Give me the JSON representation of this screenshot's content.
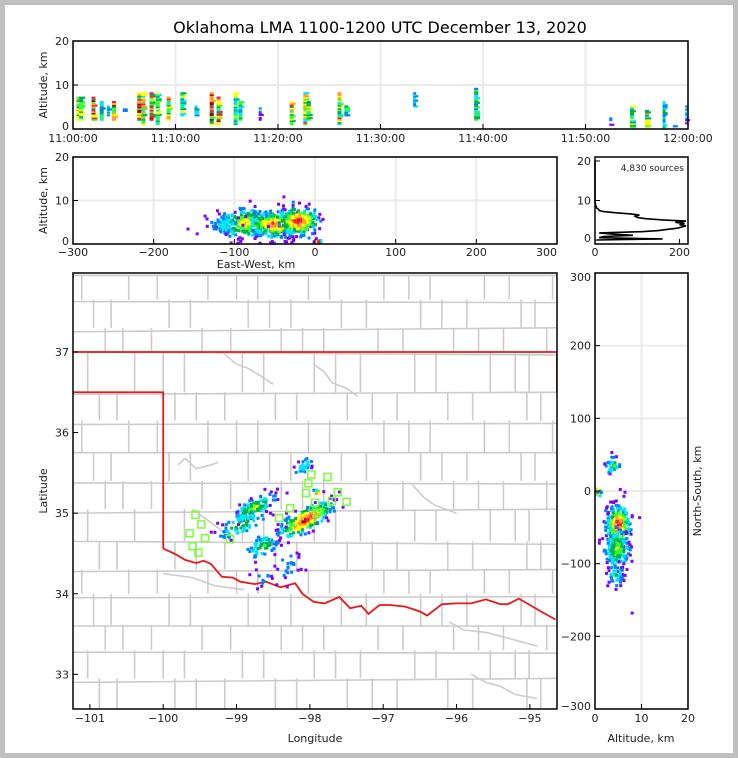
{
  "title": "Oklahoma LMA 1100-1200 UTC December 13, 2020",
  "colors": {
    "frame": "#c0c0c0",
    "state_border": "#e8191a",
    "county_border": "#cccccc",
    "station": "#7cfc3c",
    "grid": "#ebebeb",
    "density_ramp": [
      "#7f00ff",
      "#0080ff",
      "#00e5ff",
      "#00b050",
      "#33ff33",
      "#ffff00",
      "#ff9f2a",
      "#ff1a4a",
      "#b40000",
      "#000000",
      "#bdbdbd"
    ]
  },
  "chart_data": [
    {
      "id": "time_altitude",
      "type": "heatmap",
      "title": "",
      "xlabel": "",
      "ylabel": "Altitude, km",
      "xlim": [
        "11:00:00",
        "12:00:00"
      ],
      "xlim_minutes": [
        0,
        60
      ],
      "ylim": [
        0,
        20
      ],
      "xticks": [
        "11:00:00",
        "11:10:00",
        "11:20:00",
        "11:30:00",
        "11:40:00",
        "11:50:00",
        "12:00:00"
      ],
      "yticks": [
        "0",
        "10",
        "20"
      ],
      "grid": true,
      "columns": [
        {
          "t": 0.8,
          "zmin": 2,
          "zmax": 7,
          "density": 6
        },
        {
          "t": 1.2,
          "zmin": 2,
          "zmax": 7,
          "density": 5
        },
        {
          "t": 3.0,
          "zmin": 2,
          "zmax": 7,
          "density": 8
        },
        {
          "t": 4.2,
          "zmin": 2,
          "zmax": 6,
          "density": 4
        },
        {
          "t": 5.2,
          "zmin": 3,
          "zmax": 5,
          "density": 3
        },
        {
          "t": 6.0,
          "zmin": 2,
          "zmax": 6,
          "density": 7
        },
        {
          "t": 7.5,
          "zmin": 3,
          "zmax": 5,
          "density": 2
        },
        {
          "t": 9.7,
          "zmin": 2,
          "zmax": 8,
          "density": 8
        },
        {
          "t": 10.3,
          "zmin": 1,
          "zmax": 8,
          "density": 6
        },
        {
          "t": 11.5,
          "zmin": 2,
          "zmax": 8,
          "density": 7
        },
        {
          "t": 12.4,
          "zmin": 1,
          "zmax": 8,
          "density": 5
        },
        {
          "t": 14.0,
          "zmin": 2,
          "zmax": 7,
          "density": 6
        },
        {
          "t": 16.0,
          "zmin": 3,
          "zmax": 8,
          "density": 5
        },
        {
          "t": 18.0,
          "zmin": 3,
          "zmax": 5,
          "density": 3
        },
        {
          "t": 20.3,
          "zmin": 1,
          "zmax": 8,
          "density": 8
        },
        {
          "t": 21.3,
          "zmin": 1,
          "zmax": 7,
          "density": 7
        },
        {
          "t": 23.8,
          "zmin": 1,
          "zmax": 8,
          "density": 5
        },
        {
          "t": 24.5,
          "zmin": 2,
          "zmax": 6,
          "density": 4
        },
        {
          "t": 27.4,
          "zmin": 2,
          "zmax": 6,
          "density": 1
        },
        {
          "t": 32.0,
          "zmin": 1,
          "zmax": 6,
          "density": 6
        },
        {
          "t": 34.0,
          "zmin": 1,
          "zmax": 8,
          "density": 6
        },
        {
          "t": 34.5,
          "zmin": 2,
          "zmax": 6,
          "density": 5
        },
        {
          "t": 39.0,
          "zmin": 1,
          "zmax": 8,
          "density": 6
        },
        {
          "t": 40.0,
          "zmin": 3,
          "zmax": 5,
          "density": 4
        },
        {
          "t": 47.5,
          "zmin": 5,
          "zmax": 5,
          "density": 1
        },
        {
          "t": 50.0,
          "zmin": 5,
          "zmax": 8,
          "density": 3
        },
        {
          "t": 59.0,
          "zmin": 2,
          "zmax": 9,
          "density": 4
        },
        {
          "t": 65.0,
          "zmin": 0.5,
          "zmax": 0.5,
          "density": 1
        },
        {
          "t": 75.5,
          "zmin": 0.5,
          "zmax": 0.5,
          "density": 2
        },
        {
          "t": 78.7,
          "zmin": 0.5,
          "zmax": 3,
          "density": 2
        },
        {
          "t": 81.8,
          "zmin": 0.3,
          "zmax": 5,
          "density": 5
        },
        {
          "t": 84.0,
          "zmin": 0.3,
          "zmax": 4,
          "density": 6
        },
        {
          "t": 86.5,
          "zmin": 0.3,
          "zmax": 6,
          "density": 3
        },
        {
          "t": 88.0,
          "zmin": 0.3,
          "zmax": 0.5,
          "density": 2
        },
        {
          "t": 89.8,
          "zmin": 0.5,
          "zmax": 5,
          "density": 2
        }
      ]
    },
    {
      "id": "eastwest_altitude",
      "type": "heatmap",
      "xlabel": "East-West, km",
      "ylabel": "Altitude, km",
      "xlim": [
        -300,
        300
      ],
      "ylim": [
        0,
        20
      ],
      "xticks": [
        "-300",
        "-200",
        "-100",
        "0",
        "100",
        "200",
        "300"
      ],
      "yticks": [
        "0",
        "10",
        "20"
      ],
      "grid": true,
      "clusters": [
        {
          "x": -85,
          "z": 4.8,
          "sx": 18,
          "sz": 1.6,
          "n": 260,
          "peak": 6
        },
        {
          "x": -50,
          "z": 4.5,
          "sx": 16,
          "sz": 1.5,
          "n": 260,
          "peak": 7
        },
        {
          "x": -20,
          "z": 5.2,
          "sx": 12,
          "sz": 1.6,
          "n": 240,
          "peak": 8
        },
        {
          "x": -110,
          "z": 4.5,
          "sx": 10,
          "sz": 1.4,
          "n": 60,
          "peak": 3
        },
        {
          "x": 4,
          "z": 0.5,
          "sx": 2,
          "sz": 0.3,
          "n": 10,
          "peak": 7
        }
      ]
    },
    {
      "id": "altitude_histogram",
      "type": "line",
      "xlabel": "",
      "ylabel": "",
      "xlim": [
        0,
        220
      ],
      "ylim": [
        -1,
        21
      ],
      "xticks": [
        "0",
        "200"
      ],
      "yticks": [
        "0",
        "10",
        "20"
      ],
      "annotation": "4,830 sources",
      "series": [
        {
          "name": "sources per altitude bin",
          "altitude_km": [
            0,
            0.3,
            0.6,
            0.9,
            1.2,
            1.5,
            1.8,
            2.1,
            2.4,
            2.7,
            3.0,
            3.3,
            3.6,
            3.9,
            4.2,
            4.5,
            4.8,
            5.1,
            5.4,
            5.7,
            6.0,
            6.3,
            6.6,
            6.9,
            7.2,
            7.5,
            7.8,
            8.1,
            8.4,
            8.7,
            9.0,
            9.3,
            9.6,
            10.0,
            20.0
          ],
          "count": [
            5,
            160,
            10,
            20,
            90,
            40,
            10,
            110,
            150,
            170,
            195,
            205,
            215,
            200,
            212,
            190,
            215,
            160,
            120,
            100,
            95,
            105,
            85,
            50,
            20,
            10,
            8,
            4,
            3,
            2,
            1,
            1,
            0,
            0,
            0
          ]
        }
      ]
    },
    {
      "id": "plan_view_map",
      "type": "scatter",
      "xlabel": "Longitude",
      "ylabel": "Latitude",
      "xlim": [
        -101.23,
        -94.63
      ],
      "ylim": [
        32.57,
        37.98
      ],
      "xticks": [
        "-101",
        "-100",
        "-99",
        "-98",
        "-97",
        "-96",
        "-95"
      ],
      "yticks": [
        "33",
        "34",
        "35",
        "36",
        "37"
      ],
      "stations": [
        [
          -99.56,
          34.98
        ],
        [
          -99.48,
          34.86
        ],
        [
          -99.64,
          34.75
        ],
        [
          -99.43,
          34.69
        ],
        [
          -99.6,
          34.59
        ],
        [
          -99.52,
          34.51
        ],
        [
          -99.09,
          34.68
        ],
        [
          -97.98,
          35.48
        ],
        [
          -97.76,
          35.45
        ],
        [
          -98.02,
          35.37
        ],
        [
          -98.05,
          35.25
        ],
        [
          -97.93,
          35.13
        ],
        [
          -97.7,
          35.15
        ],
        [
          -97.62,
          35.26
        ],
        [
          -97.5,
          35.14
        ],
        [
          -97.9,
          35.0
        ],
        [
          -98.27,
          35.06
        ],
        [
          -98.42,
          34.94
        ]
      ],
      "clusters": [
        {
          "lon": -98.05,
          "lat": 34.92,
          "slon": 0.18,
          "slat": 0.07,
          "n": 240,
          "peak": 8,
          "tilt": 0.45
        },
        {
          "lon": -98.75,
          "lat": 35.07,
          "slon": 0.14,
          "slat": 0.06,
          "n": 120,
          "peak": 5,
          "tilt": 0.4
        },
        {
          "lon": -98.92,
          "lat": 34.86,
          "slon": 0.16,
          "slat": 0.07,
          "n": 70,
          "peak": 4,
          "tilt": 0.4
        },
        {
          "lon": -98.62,
          "lat": 34.6,
          "slon": 0.12,
          "slat": 0.08,
          "n": 70,
          "peak": 4,
          "tilt": 0.3
        },
        {
          "lon": -98.08,
          "lat": 35.58,
          "slon": 0.07,
          "slat": 0.05,
          "n": 30,
          "peak": 3,
          "tilt": 0.5
        },
        {
          "lon": -98.3,
          "lat": 34.35,
          "slon": 0.1,
          "slat": 0.1,
          "n": 25,
          "peak": 2,
          "tilt": 0.0
        },
        {
          "lon": -98.65,
          "lat": 34.2,
          "slon": 0.08,
          "slat": 0.05,
          "n": 12,
          "peak": 2,
          "tilt": 0.0
        },
        {
          "lon": -97.9,
          "lat": 35.25,
          "slon": 0.03,
          "slat": 0.02,
          "n": 6,
          "peak": 7,
          "tilt": 0.0
        }
      ]
    },
    {
      "id": "northsouth_altitude",
      "type": "heatmap",
      "xlabel": "Altitude, km",
      "ylabel": "North-South, km",
      "xlim": [
        0,
        20
      ],
      "ylim": [
        -300,
        300
      ],
      "xticks": [
        "0",
        "10",
        "20"
      ],
      "yticks": [
        "-300",
        "-200",
        "-100",
        "0",
        "100",
        "200",
        "300"
      ],
      "grid": true,
      "clusters": [
        {
          "z": 5.0,
          "y": -48,
          "sz": 1.2,
          "sy": 14,
          "n": 320,
          "peak": 8
        },
        {
          "z": 4.8,
          "y": -80,
          "sz": 1.3,
          "sy": 14,
          "n": 160,
          "peak": 5
        },
        {
          "z": 4.5,
          "y": -115,
          "sz": 1.0,
          "sy": 10,
          "n": 40,
          "peak": 3
        },
        {
          "z": 4.0,
          "y": 35,
          "sz": 0.8,
          "sy": 7,
          "n": 30,
          "peak": 4
        },
        {
          "z": 0.6,
          "y": -2,
          "sz": 0.4,
          "sy": 4,
          "n": 12,
          "peak": 7
        }
      ]
    }
  ]
}
